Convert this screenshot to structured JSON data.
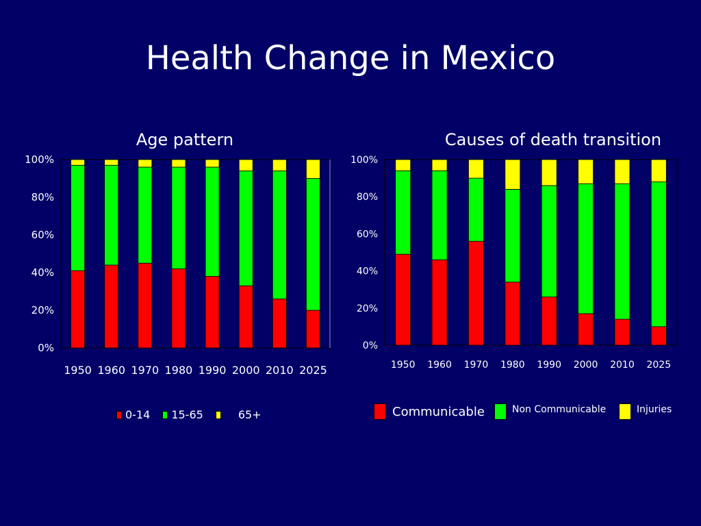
{
  "slide": {
    "title": "Health Change in Mexico"
  },
  "colors": {
    "background": "#000066",
    "red": "#ff0000",
    "green": "#00ff00",
    "yellow": "#ffff00"
  },
  "chart_data": [
    {
      "type": "bar",
      "stacked": true,
      "title": "Age pattern",
      "categories": [
        "1950",
        "1960",
        "1970",
        "1980",
        "1990",
        "2000",
        "2010",
        "2025"
      ],
      "series": [
        {
          "name": "0-14",
          "color": "#ff0000",
          "values": [
            41,
            44,
            45,
            42,
            38,
            33,
            26,
            20
          ]
        },
        {
          "name": "15-65",
          "color": "#00ff00",
          "values": [
            56,
            53,
            51,
            54,
            58,
            61,
            68,
            70
          ]
        },
        {
          "name": "65+",
          "color": "#ffff00",
          "values": [
            3,
            3,
            4,
            4,
            4,
            6,
            6,
            10
          ]
        }
      ],
      "ylim": [
        0,
        100
      ],
      "yticks": [
        "0%",
        "20%",
        "40%",
        "60%",
        "80%",
        "100%"
      ],
      "grid": false,
      "legend": "bottom"
    },
    {
      "type": "bar",
      "stacked": true,
      "title": "Causes of death transition",
      "categories": [
        "1950",
        "1960",
        "1970",
        "1980",
        "1990",
        "2000",
        "2010",
        "2025"
      ],
      "series": [
        {
          "name": "Communicable",
          "color": "#ff0000",
          "values": [
            49,
            46,
            56,
            34,
            26,
            17,
            14,
            10
          ]
        },
        {
          "name": "Non Communicable",
          "color": "#00ff00",
          "values": [
            45,
            48,
            34,
            50,
            60,
            70,
            73,
            78
          ]
        },
        {
          "name": "Injuries",
          "color": "#ffff00",
          "values": [
            6,
            6,
            10,
            16,
            14,
            13,
            13,
            12
          ]
        }
      ],
      "ylim": [
        0,
        100
      ],
      "yticks": [
        "0%",
        "20%",
        "40%",
        "60%",
        "80%",
        "100%"
      ],
      "grid": false,
      "legend": "bottom"
    }
  ]
}
